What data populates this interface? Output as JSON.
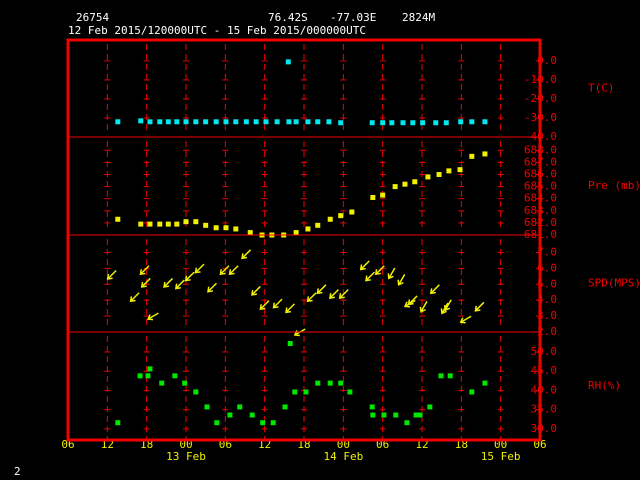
{
  "header": {
    "station": "26754",
    "latitude": "76.42S",
    "longitude": "-77.03E",
    "elevation": "2824M",
    "period": "12 Feb 2015/120000UTC - 15 Feb 2015/000000UTC"
  },
  "footer": "2",
  "x_axis": {
    "xlim": [
      0,
      72
    ],
    "xticks": [
      {
        "value": 0,
        "label": "06"
      },
      {
        "value": 6,
        "label": "12"
      },
      {
        "value": 12,
        "label": "18"
      },
      {
        "value": 18,
        "label": "00"
      },
      {
        "value": 24,
        "label": "06"
      },
      {
        "value": 30,
        "label": "12"
      },
      {
        "value": 36,
        "label": "18"
      },
      {
        "value": 42,
        "label": "00"
      },
      {
        "value": 48,
        "label": "06"
      },
      {
        "value": 54,
        "label": "12"
      },
      {
        "value": 60,
        "label": "18"
      },
      {
        "value": 66,
        "label": "00"
      },
      {
        "value": 72,
        "label": "06"
      }
    ],
    "date_ticks": [
      {
        "value": 18,
        "label": "13 Feb"
      },
      {
        "value": 42,
        "label": "14 Feb"
      },
      {
        "value": 66,
        "label": "15 Feb"
      }
    ]
  },
  "chart_data": [
    {
      "type": "scatter",
      "ylabel": "T(C)",
      "color": "#00e8f0",
      "ylim": [
        -40,
        11
      ],
      "yticks": [
        {
          "value": 0,
          "label": "0.0"
        },
        {
          "value": -10,
          "label": "-10.0"
        },
        {
          "value": -20,
          "label": "-20.0"
        },
        {
          "value": -30,
          "label": "-30.0"
        },
        {
          "value": -40,
          "label": "-40.0"
        }
      ],
      "x": [
        7.6,
        11.1,
        12.5,
        14.0,
        15.3,
        16.6,
        18.0,
        19.5,
        21.0,
        22.6,
        24.1,
        25.6,
        27.2,
        28.7,
        30.2,
        31.9,
        33.6,
        33.7,
        34.8,
        36.6,
        38.1,
        39.8,
        41.6,
        46.4,
        48.0,
        49.4,
        51.1,
        52.6,
        54.1,
        56.1,
        57.7,
        59.9,
        61.6,
        63.6
      ],
      "values": [
        -32,
        -31.5,
        -32,
        -32,
        -32,
        -32,
        -32,
        -32,
        -32,
        -32,
        -32,
        -32,
        -32,
        -32,
        -32,
        -32,
        -0.5,
        -32,
        -32,
        -32,
        -32,
        -32,
        -32.5,
        -32.5,
        -32.5,
        -32.5,
        -32.5,
        -32.5,
        -32.5,
        -32.5,
        -32.5,
        -32,
        -32,
        -32
      ]
    },
    {
      "type": "scatter",
      "ylabel": "Pre (mb)",
      "color": "#f0f000",
      "ylim": [
        681,
        689.1
      ],
      "yticks": [
        {
          "value": 688,
          "label": "688.0"
        },
        {
          "value": 687,
          "label": "687.0"
        },
        {
          "value": 686,
          "label": "686.0"
        },
        {
          "value": 685,
          "label": "685.0"
        },
        {
          "value": 684,
          "label": "684.0"
        },
        {
          "value": 683,
          "label": "683.0"
        },
        {
          "value": 682,
          "label": "682.0"
        },
        {
          "value": 681,
          "label": "681.0"
        }
      ],
      "x": [
        7.6,
        11.1,
        12.5,
        14.0,
        15.3,
        16.6,
        18.0,
        19.5,
        21.0,
        22.6,
        24.1,
        25.6,
        27.8,
        29.6,
        31.1,
        32.9,
        34.8,
        36.6,
        38.1,
        40.0,
        41.6,
        43.3,
        46.5,
        48.0,
        49.9,
        51.4,
        52.9,
        54.9,
        56.6,
        58.1,
        59.8,
        61.6,
        63.6
      ],
      "values": [
        682.3,
        681.9,
        681.9,
        681.9,
        681.9,
        681.9,
        682.1,
        682.1,
        681.8,
        681.6,
        681.6,
        681.5,
        681.2,
        681.0,
        681.0,
        681.0,
        681.2,
        681.5,
        681.8,
        682.3,
        682.6,
        682.9,
        684.1,
        684.3,
        685.0,
        685.2,
        685.4,
        685.8,
        686.0,
        686.3,
        686.4,
        687.5,
        687.7
      ]
    },
    {
      "type": "vector",
      "ylabel": "SPD(MPS)",
      "color": "#f0f000",
      "ylim": [
        2,
        8.1
      ],
      "yticks": [
        {
          "value": 7,
          "label": "7.0"
        },
        {
          "value": 6,
          "label": "6.0"
        },
        {
          "value": 5,
          "label": "5.0"
        },
        {
          "value": 4,
          "label": "4.0"
        },
        {
          "value": 3,
          "label": "3.0"
        },
        {
          "value": 2,
          "label": "2.0"
        }
      ],
      "x": [
        6.7,
        10.2,
        11.7,
        11.9,
        13.0,
        15.3,
        17.1,
        18.6,
        20.1,
        22.0,
        23.9,
        25.3,
        27.2,
        28.7,
        30.0,
        32.0,
        33.9,
        35.4,
        37.2,
        38.7,
        40.6,
        42.1,
        45.3,
        46.1,
        47.6,
        49.4,
        50.9,
        52.2,
        52.6,
        54.3,
        56.0,
        57.5,
        58.0,
        60.7,
        62.8
      ],
      "values": [
        5.6,
        4.2,
        5.9,
        5.1,
        3.0,
        5.1,
        5.0,
        5.5,
        6.0,
        4.8,
        5.9,
        5.9,
        6.9,
        4.6,
        3.7,
        3.8,
        3.5,
        2.0,
        4.2,
        4.7,
        4.4,
        4.4,
        6.2,
        5.5,
        5.9,
        5.7,
        5.3,
        3.8,
        4.0,
        3.6,
        4.7,
        3.5,
        3.7,
        2.8,
        3.6
      ],
      "directions": [
        225,
        225,
        225,
        225,
        240,
        225,
        225,
        225,
        225,
        225,
        225,
        225,
        225,
        225,
        225,
        225,
        225,
        240,
        225,
        225,
        225,
        225,
        225,
        225,
        225,
        210,
        210,
        240,
        225,
        210,
        225,
        210,
        210,
        240,
        225
      ]
    },
    {
      "type": "scatter",
      "ylabel": "RH(%)",
      "color": "#00e800",
      "ylim": [
        27.1,
        55.2
      ],
      "yticks": [
        {
          "value": 50,
          "label": "50.0"
        },
        {
          "value": 45,
          "label": "45.0"
        },
        {
          "value": 40,
          "label": "40.0"
        },
        {
          "value": 35,
          "label": "35.0"
        },
        {
          "value": 30,
          "label": "30.0"
        }
      ],
      "x": [
        7.6,
        11.0,
        12.2,
        12.5,
        14.3,
        16.3,
        17.8,
        19.5,
        21.2,
        22.7,
        24.7,
        26.2,
        28.1,
        29.7,
        31.3,
        33.1,
        33.9,
        34.6,
        36.3,
        38.1,
        40.0,
        41.6,
        43.0,
        46.4,
        46.5,
        48.2,
        50.0,
        51.7,
        53.1,
        53.7,
        55.2,
        56.9,
        58.3,
        61.6,
        63.6
      ],
      "values": [
        31.6,
        43.8,
        43.8,
        45.6,
        41.9,
        43.8,
        41.9,
        39.6,
        35.7,
        31.6,
        33.6,
        35.7,
        33.6,
        31.6,
        31.6,
        35.7,
        52.2,
        39.6,
        39.6,
        41.9,
        41.9,
        41.9,
        39.6,
        35.7,
        33.6,
        33.6,
        33.6,
        31.6,
        33.6,
        33.6,
        35.7,
        43.8,
        43.8,
        39.6,
        41.9
      ]
    }
  ]
}
